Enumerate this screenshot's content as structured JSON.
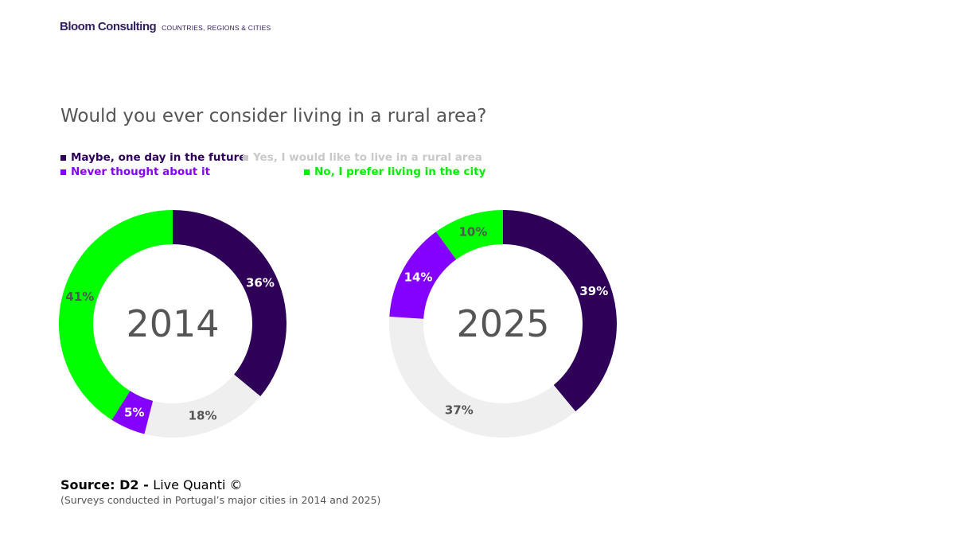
{
  "brand": {
    "name": "Bloom Consulting",
    "tagline": "COUNTRIES, REGIONS & CITIES"
  },
  "title": "Would you ever consider living in a rural area?",
  "legend": [
    {
      "label": "Maybe, one day in the future",
      "color": "#2e0057"
    },
    {
      "label": "Yes, I would like to live in a rural area",
      "color": "#c9c9c9"
    },
    {
      "label": "Never thought about it",
      "color": "#8400ff"
    },
    {
      "label": "No, I prefer living in the city",
      "color": "#00ee00"
    }
  ],
  "source": {
    "prefix": "Source: D2 - ",
    "text": "Live Quanti ©",
    "note": "(Surveys conducted in Portugal’s major cities in 2014 and 2025)"
  },
  "chart_data": [
    {
      "type": "pie",
      "center_label": "2014",
      "series": [
        {
          "name": "Maybe, one day in the future",
          "value": 36,
          "label": "36%",
          "color": "#2e0057",
          "label_color": "#ffffff"
        },
        {
          "name": "Yes, I would like to live in a rural area",
          "value": 18,
          "label": "18%",
          "color": "#efefef",
          "label_color": "#555555"
        },
        {
          "name": "Never thought about it",
          "value": 5,
          "label": "5%",
          "color": "#8400ff",
          "label_color": "#ffffff"
        },
        {
          "name": "No, I prefer living in the city",
          "value": 41,
          "label": "41%",
          "color": "#00ff00",
          "label_color": "#555555"
        }
      ]
    },
    {
      "type": "pie",
      "center_label": "2025",
      "series": [
        {
          "name": "Maybe, one day in the future",
          "value": 39,
          "label": "39%",
          "color": "#2e0057",
          "label_color": "#ffffff"
        },
        {
          "name": "Yes, I would like to live in a rural area",
          "value": 37,
          "label": "37%",
          "color": "#efefef",
          "label_color": "#555555"
        },
        {
          "name": "Never thought about it",
          "value": 14,
          "label": "14%",
          "color": "#8400ff",
          "label_color": "#ffffff"
        },
        {
          "name": "No, I prefer living in the city",
          "value": 10,
          "label": "10%",
          "color": "#00ff00",
          "label_color": "#555555"
        }
      ]
    }
  ]
}
